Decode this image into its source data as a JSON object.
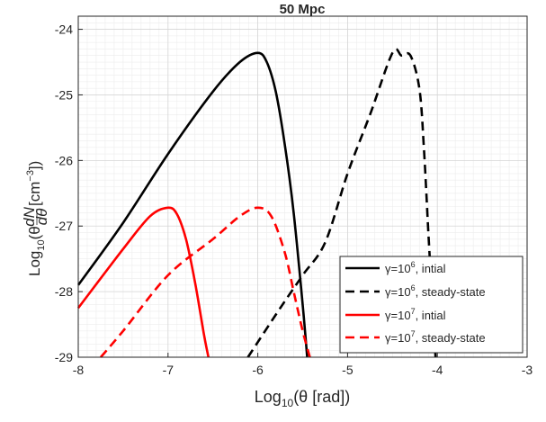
{
  "chart_data": {
    "type": "line",
    "title": "50 Mpc",
    "xlabel": "Log10(θ [rad])",
    "ylabel": "Log10(θ dN/dθ [cm−3])",
    "xlim": [
      -8,
      -3
    ],
    "ylim": [
      -29,
      -23.8
    ],
    "xticks": [
      -8,
      -7,
      -6,
      -5,
      -4,
      -3
    ],
    "yticks": [
      -29,
      -28,
      -27,
      -26,
      -25,
      -24
    ],
    "grid": true,
    "minor_grid": true,
    "legend_position": "bottom-right",
    "series": [
      {
        "name": "γ=10^6, intial",
        "color": "#000000",
        "dash": "solid",
        "x": [
          -8,
          -7.5,
          -7,
          -6.5,
          -6.2,
          -6,
          -5.9,
          -5.8,
          -5.7,
          -5.6,
          -5.5,
          -5.45
        ],
        "y": [
          -27.9,
          -26.95,
          -25.9,
          -24.95,
          -24.5,
          -24.36,
          -24.5,
          -24.95,
          -25.75,
          -26.8,
          -28.2,
          -29
        ]
      },
      {
        "name": "γ=10^6, steady-state",
        "color": "#000000",
        "dash": "dashed",
        "x": [
          -6.11,
          -5.75,
          -5.5,
          -5.25,
          -5,
          -4.75,
          -4.5,
          -4.4,
          -4.3,
          -4.2,
          -4.15,
          -4.1,
          -4.05,
          -4.02
        ],
        "y": [
          -29,
          -28.25,
          -27.75,
          -27.25,
          -26.2,
          -25.3,
          -24.36,
          -24.4,
          -24.4,
          -24.9,
          -25.8,
          -27.1,
          -28.3,
          -29
        ]
      },
      {
        "name": "γ=10^7, intial",
        "color": "#ff0000",
        "dash": "solid",
        "x": [
          -8,
          -7.5,
          -7.2,
          -7.0,
          -6.9,
          -6.8,
          -6.7,
          -6.6,
          -6.55
        ],
        "y": [
          -28.25,
          -27.35,
          -26.85,
          -26.72,
          -26.82,
          -27.2,
          -27.85,
          -28.65,
          -29
        ]
      },
      {
        "name": "γ=10^7, steady-state",
        "color": "#ff0000",
        "dash": "dashed",
        "x": [
          -7.75,
          -7.5,
          -7.0,
          -6.5,
          -6.2,
          -6.0,
          -5.85,
          -5.7,
          -5.6,
          -5.5,
          -5.42
        ],
        "y": [
          -29,
          -28.6,
          -27.75,
          -27.2,
          -26.85,
          -26.72,
          -26.85,
          -27.4,
          -28.0,
          -28.6,
          -29
        ]
      }
    ],
    "legend": [
      {
        "prefix": "γ=10",
        "sup": "6",
        "suffix": ", intial"
      },
      {
        "prefix": "γ=10",
        "sup": "6",
        "suffix": ", steady-state"
      },
      {
        "prefix": "γ=10",
        "sup": "7",
        "suffix": ", intial"
      },
      {
        "prefix": "γ=10",
        "sup": "7",
        "suffix": ", steady-state"
      }
    ],
    "xlabel_parts": {
      "log": "Log",
      "sub": "10",
      "arg": "(θ [rad])"
    },
    "ylabel_parts": {
      "log": "Log",
      "sub": "10",
      "open": "(θ",
      "frac_num": "dN",
      "frac_den": "dθ",
      "unit": " [cm",
      "unit_sup": "−3",
      "close": "])"
    }
  }
}
